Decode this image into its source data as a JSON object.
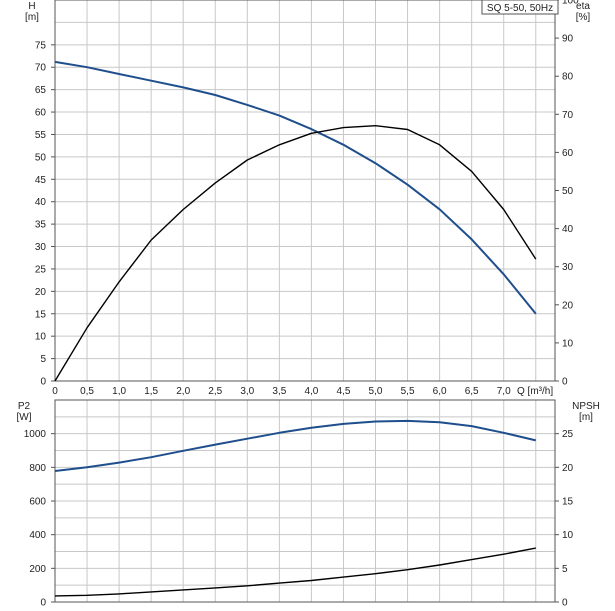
{
  "chart_data": [
    {
      "type": "line",
      "title": "SQ 5-50, 50Hz",
      "xlabel": "Q [m³/h]",
      "x_ticks": [
        "0",
        "0.5",
        "1.0",
        "1.5",
        "2.0",
        "2.5",
        "3.0",
        "3.5",
        "4.0",
        "4.5",
        "5.0",
        "5.5",
        "6.0",
        "6.5",
        "7.0"
      ],
      "xlim": [
        0,
        7.8
      ],
      "y_left": {
        "label_top": "H",
        "label_bottom": "[m]",
        "ylim": [
          0,
          85
        ],
        "ticks": [
          0,
          5,
          10,
          15,
          20,
          25,
          30,
          35,
          40,
          45,
          50,
          55,
          60,
          65,
          70,
          75
        ]
      },
      "y_right": {
        "label_top": "eta",
        "label_bottom": "[%]",
        "ylim": [
          0,
          100
        ],
        "ticks": [
          0,
          10,
          20,
          30,
          40,
          50,
          60,
          70,
          80,
          90,
          100
        ]
      },
      "grid": true,
      "series": [
        {
          "axis": "left",
          "color": "#1f4e8c",
          "x": [
            0,
            0.5,
            1.0,
            1.5,
            2.0,
            2.5,
            3.0,
            3.5,
            4.0,
            4.5,
            5.0,
            5.5,
            6.0,
            6.5,
            7.0,
            7.5
          ],
          "values": [
            71.2,
            70.0,
            68.5,
            67.0,
            65.5,
            63.8,
            61.6,
            59.2,
            56.2,
            52.7,
            48.6,
            43.8,
            38.3,
            31.6,
            23.8,
            15.0
          ]
        },
        {
          "axis": "right",
          "color": "#000000",
          "x": [
            0,
            0.5,
            1.0,
            1.5,
            2.0,
            2.5,
            3.0,
            3.5,
            4.0,
            4.5,
            5.0,
            5.5,
            6.0,
            6.5,
            7.0,
            7.5
          ],
          "values": [
            0,
            14,
            26,
            37,
            45,
            52,
            58,
            62,
            65,
            66.5,
            67,
            66,
            62,
            55,
            45,
            32
          ]
        }
      ]
    },
    {
      "type": "line",
      "xlim": [
        0,
        7.8
      ],
      "y_left": {
        "label_top": "P2",
        "label_bottom": "[W]",
        "ylim": [
          0,
          1200
        ],
        "ticks": [
          0,
          200,
          400,
          600,
          800,
          1000
        ]
      },
      "y_right": {
        "label_top": "NPSH",
        "label_bottom": "[m]",
        "ylim": [
          0,
          30
        ],
        "ticks": [
          0,
          5,
          10,
          15,
          20,
          25
        ]
      },
      "grid": true,
      "series": [
        {
          "axis": "left",
          "color": "#1f4e8c",
          "x": [
            0,
            0.5,
            1.0,
            1.5,
            2.0,
            2.5,
            3.0,
            3.5,
            4.0,
            4.5,
            5.0,
            5.5,
            6.0,
            6.5,
            7.0,
            7.5
          ],
          "values": [
            778,
            800,
            828,
            860,
            898,
            935,
            970,
            1005,
            1035,
            1058,
            1072,
            1076,
            1068,
            1045,
            1005,
            960
          ]
        },
        {
          "axis": "right",
          "color": "#000000",
          "x": [
            0,
            0.5,
            1.0,
            1.5,
            2.0,
            2.5,
            3.0,
            3.5,
            4.0,
            4.5,
            5.0,
            5.5,
            6.0,
            6.5,
            7.0,
            7.5
          ],
          "values": [
            0.9,
            1.0,
            1.2,
            1.5,
            1.8,
            2.1,
            2.4,
            2.8,
            3.2,
            3.7,
            4.2,
            4.8,
            5.5,
            6.3,
            7.1,
            8.0
          ]
        }
      ]
    }
  ]
}
